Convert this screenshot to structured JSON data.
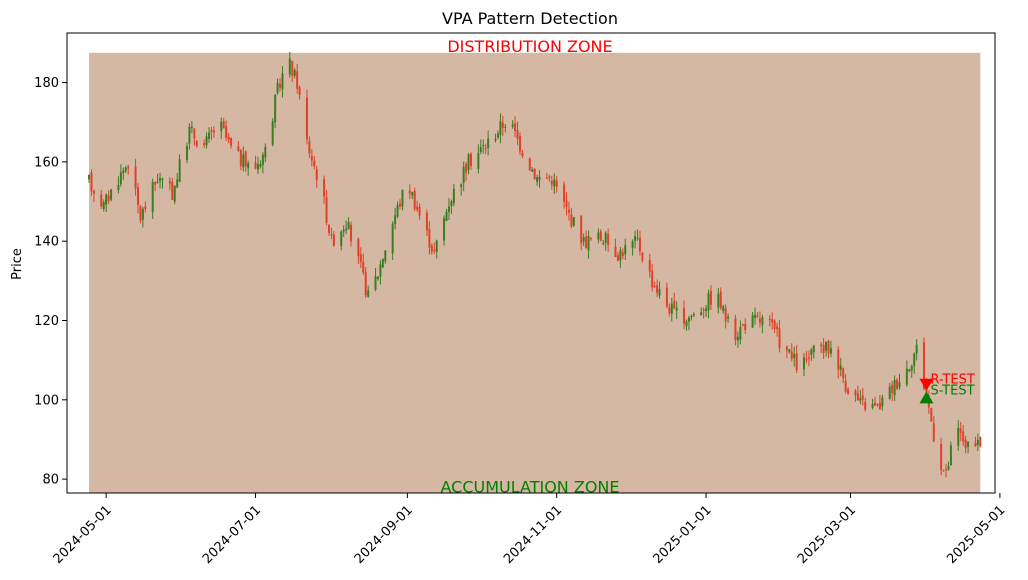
{
  "chart_data": {
    "type": "candlestick",
    "title": "VPA Pattern Detection",
    "xlabel": "",
    "ylabel": "Price",
    "xlim": [
      "2024-04-15",
      "2025-04-29"
    ],
    "ylim": [
      76.5,
      192.5
    ],
    "x_ticks": [
      "2024-05-01",
      "2024-07-01",
      "2024-09-01",
      "2024-11-01",
      "2025-01-01",
      "2025-03-01",
      "2025-05-01"
    ],
    "y_ticks": [
      80,
      100,
      120,
      140,
      160,
      180
    ],
    "grid": false,
    "colors": {
      "up": "#3a7d22",
      "down": "#e0412a",
      "zone_fill": "#d5b8a3",
      "distribution": "#ff0000",
      "accumulation": "#008000"
    },
    "zones": [
      {
        "name": "DISTRIBUTION ZONE",
        "position": "top",
        "color": "#ff0000"
      },
      {
        "name": "ACCUMULATION ZONE",
        "position": "bottom",
        "color": "#008000"
      }
    ],
    "zone_band": {
      "x_start": "2024-04-24",
      "x_end": "2025-04-23",
      "y_min": 76.5,
      "y_max": 187.5
    },
    "markers": [
      {
        "label": "R-TEST",
        "date": "2025-04-01",
        "price": 103.8,
        "shape": "triangle-down",
        "color": "#ff0000"
      },
      {
        "label": "S-TEST",
        "date": "2025-04-01",
        "price": 100.6,
        "shape": "triangle-up",
        "color": "#008000"
      }
    ],
    "anchors": [
      [
        "2024-04-24",
        155.0
      ],
      [
        "2024-04-30",
        149.0
      ],
      [
        "2024-05-05",
        155.0
      ],
      [
        "2024-05-10",
        160.0
      ],
      [
        "2024-05-15",
        146.0
      ],
      [
        "2024-05-22",
        156.0
      ],
      [
        "2024-05-28",
        152.0
      ],
      [
        "2024-06-04",
        168.0
      ],
      [
        "2024-06-10",
        164.0
      ],
      [
        "2024-06-16",
        170.0
      ],
      [
        "2024-06-22",
        162.0
      ],
      [
        "2024-06-30",
        158.0
      ],
      [
        "2024-07-05",
        163.0
      ],
      [
        "2024-07-10",
        178.0
      ],
      [
        "2024-07-14",
        186.0
      ],
      [
        "2024-07-18",
        180.0
      ],
      [
        "2024-07-22",
        165.0
      ],
      [
        "2024-07-28",
        153.0
      ],
      [
        "2024-08-01",
        140.0
      ],
      [
        "2024-08-07",
        145.0
      ],
      [
        "2024-08-13",
        133.0
      ],
      [
        "2024-08-16",
        126.0
      ],
      [
        "2024-08-20",
        132.0
      ],
      [
        "2024-08-26",
        145.0
      ],
      [
        "2024-09-01",
        155.0
      ],
      [
        "2024-09-07",
        145.0
      ],
      [
        "2024-09-12",
        137.0
      ],
      [
        "2024-09-18",
        150.0
      ],
      [
        "2024-09-26",
        160.0
      ],
      [
        "2024-10-04",
        165.0
      ],
      [
        "2024-10-12",
        171.0
      ],
      [
        "2024-10-18",
        163.0
      ],
      [
        "2024-10-24",
        156.0
      ],
      [
        "2024-10-30",
        156.0
      ],
      [
        "2024-11-05",
        148.0
      ],
      [
        "2024-11-12",
        140.0
      ],
      [
        "2024-11-20",
        141.0
      ],
      [
        "2024-11-26",
        137.0
      ],
      [
        "2024-12-04",
        140.0
      ],
      [
        "2024-12-10",
        130.0
      ],
      [
        "2024-12-16",
        124.0
      ],
      [
        "2024-12-22",
        120.0
      ],
      [
        "2024-12-28",
        122.0
      ],
      [
        "2025-01-05",
        127.0
      ],
      [
        "2025-01-12",
        116.0
      ],
      [
        "2025-01-18",
        120.0
      ],
      [
        "2025-01-26",
        120.0
      ],
      [
        "2025-02-02",
        113.0
      ],
      [
        "2025-02-08",
        108.0
      ],
      [
        "2025-02-16",
        113.0
      ],
      [
        "2025-02-22",
        113.0
      ],
      [
        "2025-02-27",
        104.0
      ],
      [
        "2025-03-05",
        99.0
      ],
      [
        "2025-03-12",
        98.0
      ],
      [
        "2025-03-18",
        103.0
      ],
      [
        "2025-03-24",
        108.0
      ],
      [
        "2025-03-28",
        113.0
      ],
      [
        "2025-04-02",
        98.0
      ],
      [
        "2025-04-06",
        85.0
      ],
      [
        "2025-04-09",
        81.0
      ],
      [
        "2025-04-13",
        93.0
      ],
      [
        "2025-04-18",
        88.0
      ],
      [
        "2025-04-23",
        88.0
      ]
    ]
  }
}
